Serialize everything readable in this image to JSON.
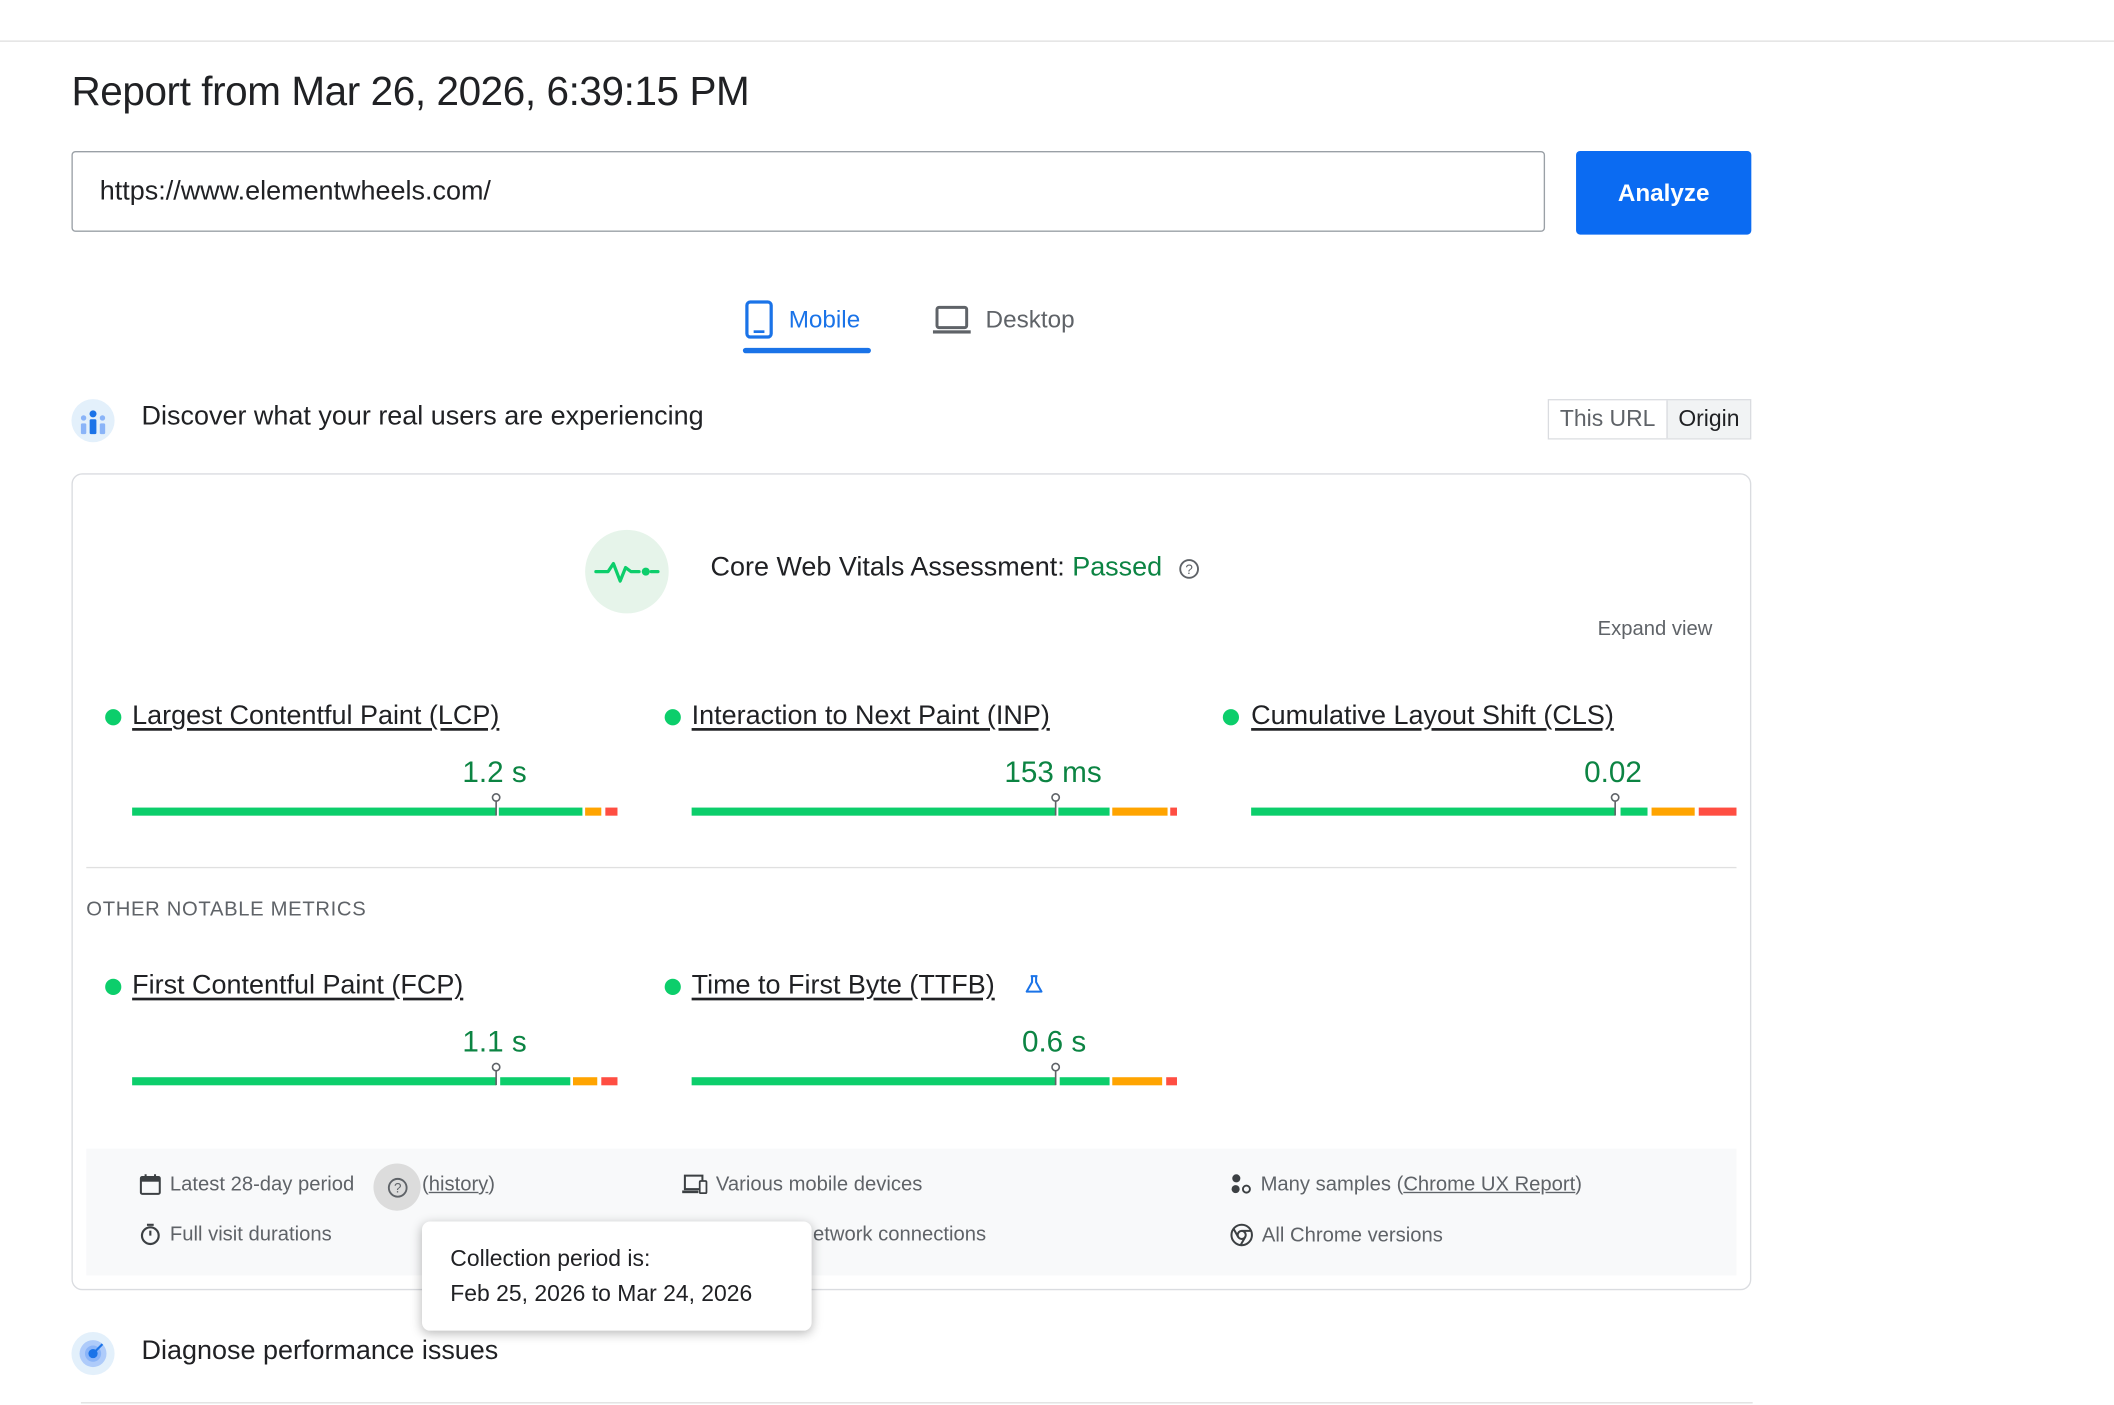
{
  "report": {
    "title": "Report from Mar 26, 2026, 6:39:15 PM"
  },
  "search": {
    "url": "https://www.elementwheels.com/",
    "analyze_label": "Analyze"
  },
  "tabs": [
    {
      "label": "Mobile",
      "icon": "smartphone-icon",
      "active": true
    },
    {
      "label": "Desktop",
      "icon": "laptop-icon",
      "active": false
    }
  ],
  "field_data": {
    "section_title": "Discover what your real users are experiencing",
    "toggle": {
      "this_url": "This URL",
      "origin": "Origin",
      "selected": "Origin"
    },
    "assessment_label": "Core Web Vitals Assessment:",
    "assessment_result": "Passed",
    "expand_view": "Expand view",
    "core_metrics": [
      {
        "name": "Largest Contentful Paint (LCP)",
        "value": "1.2 s",
        "status": "good"
      },
      {
        "name": "Interaction to Next Paint (INP)",
        "value": "153 ms",
        "status": "good"
      },
      {
        "name": "Cumulative Layout Shift (CLS)",
        "value": "0.02",
        "status": "good"
      }
    ],
    "other_heading": "OTHER NOTABLE METRICS",
    "other_metrics": [
      {
        "name": "First Contentful Paint (FCP)",
        "value": "1.1 s",
        "status": "good"
      },
      {
        "name": "Time to First Byte (TTFB)",
        "value": "0.6 s",
        "status": "good",
        "experimental_icon": "flask-icon"
      }
    ],
    "info": {
      "period": "Latest 28-day period",
      "history": "history",
      "devices": "Various mobile devices",
      "samples_prefix": "Many samples (",
      "samples_link": "Chrome UX Report",
      "samples_suffix": ")",
      "durations": "Full visit durations",
      "network": "etwork connections",
      "chrome": "All Chrome versions"
    },
    "tooltip": {
      "line1": "Collection period is:",
      "line2": "Feb 25, 2026 to Mar 24, 2026"
    }
  },
  "diagnose": {
    "section_title": "Diagnose performance issues"
  },
  "colors": {
    "accent": "#1a73e8",
    "analyze_bg": "#0b6bf2",
    "good": "#0cce6b",
    "good_text": "#0c8443",
    "average": "#ffa400",
    "poor": "#ff4e42"
  }
}
